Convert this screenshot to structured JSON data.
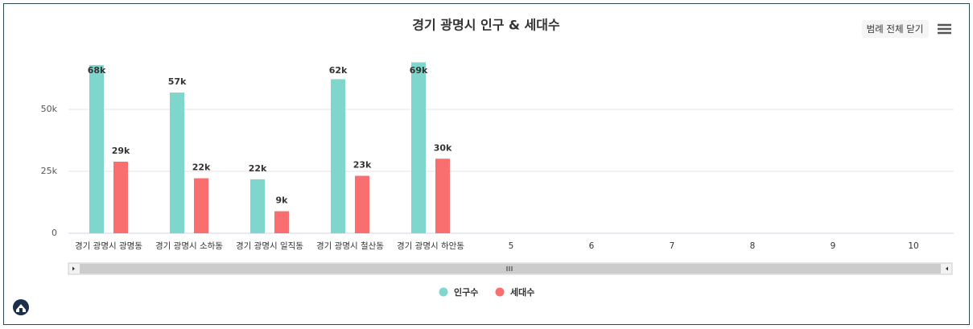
{
  "chart_data": {
    "type": "bar",
    "title": "경기 광명시 인구 & 세대수",
    "categories": [
      "경기 광명시 광명동",
      "경기 광명시 소하동",
      "경기 광명시 일직동",
      "경기 광명시 철산동",
      "경기 광명시 하안동",
      "5",
      "6",
      "7",
      "8",
      "9",
      "10"
    ],
    "series": [
      {
        "name": "인구수",
        "color": "#7fd6cc",
        "values": [
          67900,
          56800,
          21800,
          62200,
          69000,
          null,
          null,
          null,
          null,
          null,
          null
        ],
        "value_labels": [
          "68k",
          "57k",
          "22k",
          "62k",
          "69k",
          null,
          null,
          null,
          null,
          null,
          null
        ]
      },
      {
        "name": "세대수",
        "color": "#f96f6f",
        "values": [
          28900,
          22200,
          8900,
          23200,
          30100,
          null,
          null,
          null,
          null,
          null,
          null
        ],
        "value_labels": [
          "29k",
          "22k",
          "9k",
          "23k",
          "30k",
          null,
          null,
          null,
          null,
          null,
          null
        ]
      }
    ],
    "ylim": [
      0,
      75000
    ],
    "yticks": [
      {
        "value": 0,
        "label": "0"
      },
      {
        "value": 25000,
        "label": "25k"
      },
      {
        "value": 50000,
        "label": "50k"
      }
    ],
    "grid": true,
    "legend_button": "범례 전체 닫기"
  }
}
